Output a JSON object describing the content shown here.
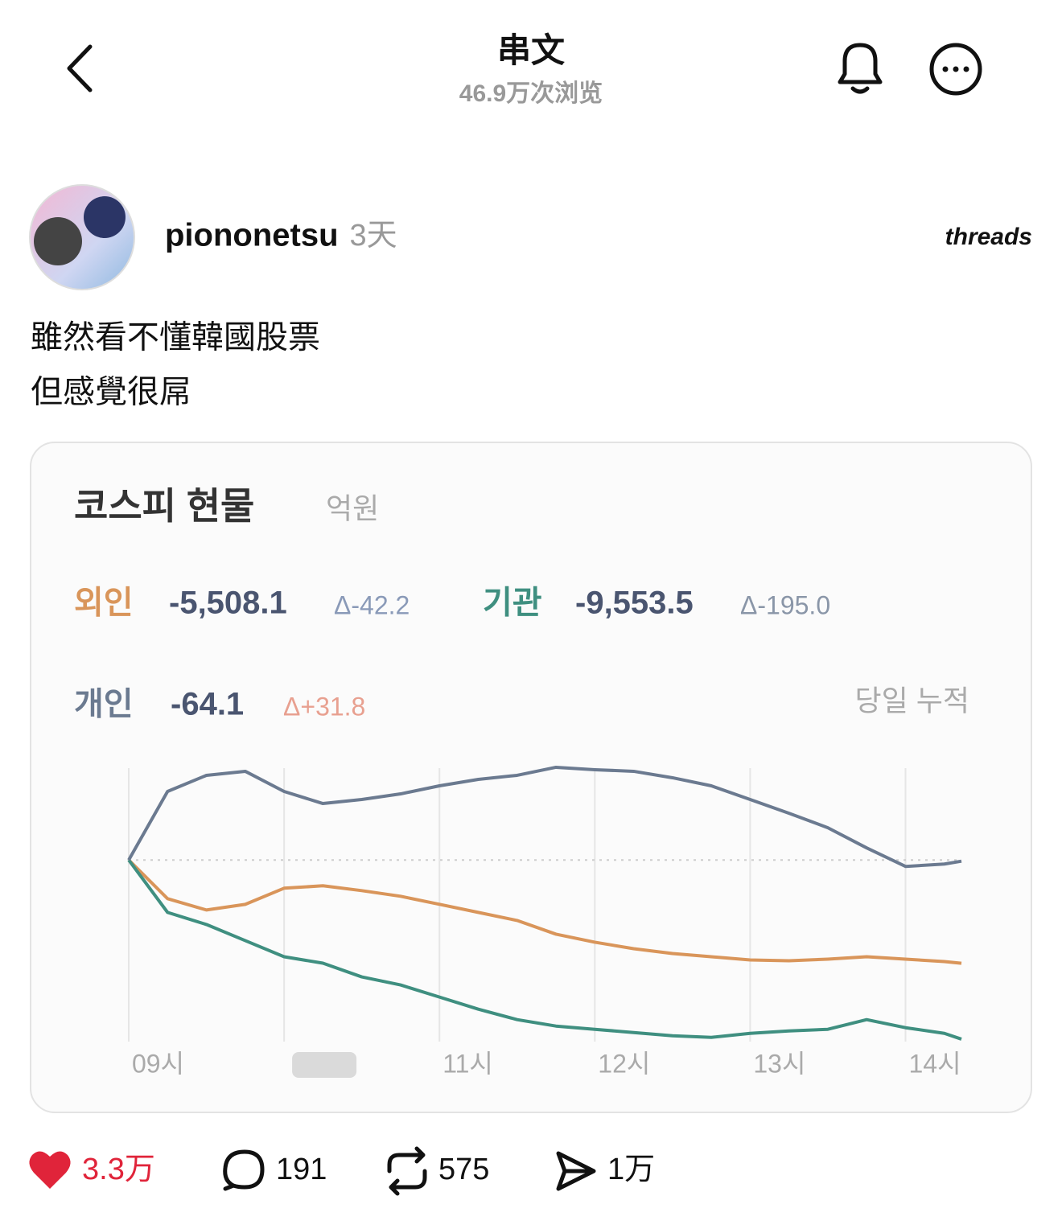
{
  "header": {
    "title": "串文",
    "views": "46.9万次浏览"
  },
  "post": {
    "username": "piononetsu",
    "time": "3天",
    "brand": "threads",
    "text": [
      "雖然看不懂韓國股票",
      "但感覺很屌"
    ]
  },
  "chart_data": {
    "type": "line",
    "title": "코스피 현물",
    "unit": "억원",
    "note": "당일 누적",
    "x": [
      9,
      9.25,
      9.5,
      9.75,
      10,
      10.25,
      10.5,
      10.75,
      11,
      11.25,
      11.5,
      11.75,
      12,
      12.25,
      12.5,
      12.75,
      13,
      13.25,
      13.5,
      13.75,
      14,
      14.25,
      14.36
    ],
    "xlim": [
      9,
      14.36
    ],
    "xticks": [
      {
        "value": 9,
        "label": "09시"
      },
      {
        "value": 10,
        "label": null
      },
      {
        "value": 11,
        "label": "11시"
      },
      {
        "value": 12,
        "label": "12시"
      },
      {
        "value": 13,
        "label": "13시"
      },
      {
        "value": 14,
        "label": "14시"
      }
    ],
    "ylim": [
      -9900,
      5200
    ],
    "reference_line": 0,
    "grid": true,
    "series": [
      {
        "name": "외인",
        "color": "#d9955a",
        "printed_total": "-5,508.1",
        "change": "Δ-42.2",
        "values": [
          0,
          -2064,
          -2666,
          -2365,
          -1505,
          -1376,
          -1634,
          -1935,
          -2365,
          -2795,
          -3225,
          -3956,
          -4386,
          -4730,
          -4988,
          -5160,
          -5332,
          -5375,
          -5289,
          -5160,
          -5289,
          -5418,
          -5508.1
        ]
      },
      {
        "name": "기관",
        "color": "#3f8f80",
        "printed_total": "-9,553.5",
        "change": "Δ-195.0",
        "values": [
          0,
          -2795,
          -3440,
          -4300,
          -5160,
          -5504,
          -6235,
          -6665,
          -7310,
          -7955,
          -8514,
          -8858,
          -9030,
          -9202,
          -9374,
          -9460,
          -9245,
          -9116,
          -9030,
          -8514,
          -8944,
          -9245,
          -9553.5
        ]
      },
      {
        "name": "개인",
        "color": "#6b7a90",
        "printed_total": "-64.1",
        "change": "Δ+31.8",
        "values": [
          0,
          3655,
          4515,
          4730,
          3655,
          3010,
          3225,
          3526,
          3956,
          4300,
          4515,
          4945,
          4816,
          4730,
          4386,
          3956,
          3225,
          2494,
          1720,
          645,
          -344,
          -215,
          -64.1
        ]
      }
    ]
  },
  "actions": {
    "likes": "3.3万",
    "comments": "191",
    "reposts": "575",
    "shares": "1万"
  }
}
